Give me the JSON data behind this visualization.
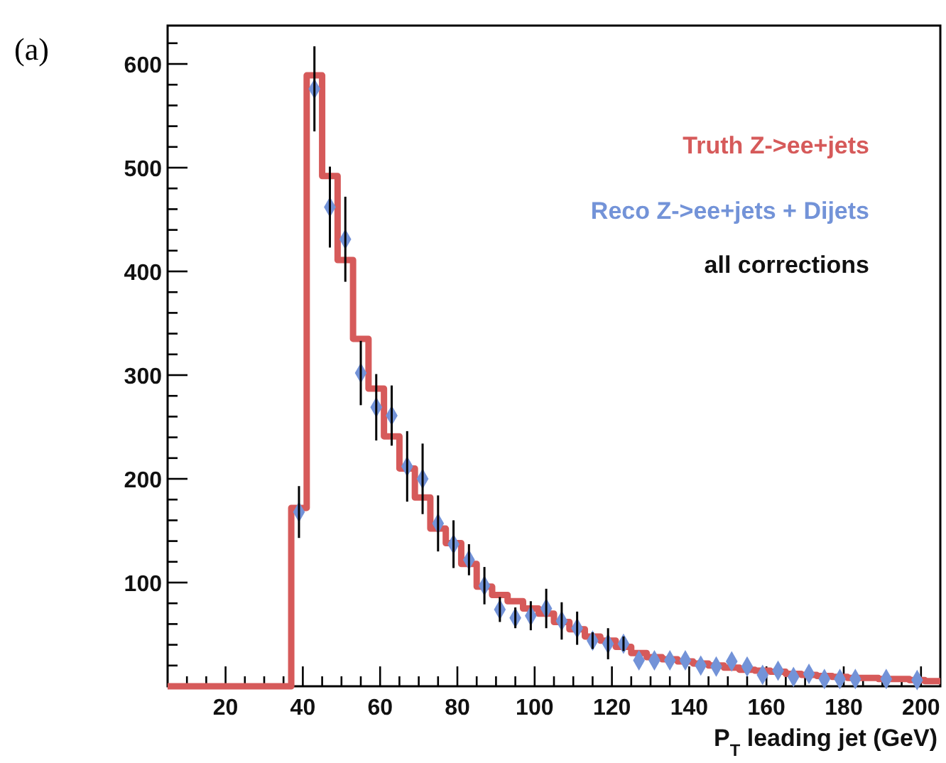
{
  "chart_data": {
    "type": "histogram",
    "title": "(a)",
    "xlabel": "P$_{T}$ leading jet (GeV)",
    "bins": [
      5,
      9,
      13,
      17,
      21,
      25,
      29,
      33,
      37,
      41,
      45,
      49,
      53,
      57,
      61,
      65,
      69,
      73,
      77,
      81,
      85,
      89,
      93,
      97,
      101,
      105,
      109,
      113,
      117,
      121,
      125,
      129,
      133,
      137,
      141,
      145,
      149,
      153,
      157,
      161,
      165,
      169,
      173,
      177,
      181,
      185,
      189,
      193,
      197,
      201,
      205
    ],
    "series": [
      {
        "name": "Truth Z->ee+jets",
        "color": "#d65a5a",
        "values": [
          0,
          0,
          0,
          0,
          0,
          0,
          0,
          0,
          172,
          589,
          492,
          411,
          335,
          287,
          241,
          210,
          182,
          152,
          138,
          118,
          96,
          88,
          82,
          75,
          70,
          62,
          55,
          48,
          44,
          38,
          32,
          28,
          26,
          24,
          22,
          20,
          18,
          16,
          15,
          14,
          12,
          11,
          10,
          9,
          8,
          8,
          7,
          7,
          6,
          5
        ]
      },
      {
        "name": "Reco Z->ee+jets + Dijets",
        "type": "scatter",
        "color": "#7393d8",
        "x": [
          39,
          43,
          47,
          51,
          55,
          59,
          63,
          67,
          71,
          75,
          79,
          83,
          87,
          91,
          95,
          99,
          103,
          107,
          111,
          115,
          119,
          123,
          127,
          131,
          135,
          139,
          143,
          147,
          151,
          155,
          159,
          163,
          167,
          171,
          175,
          179,
          183,
          191,
          199
        ],
        "values": [
          168,
          576,
          462,
          431,
          302,
          269,
          261,
          212,
          200,
          157,
          137,
          122,
          97,
          74,
          66,
          68,
          75,
          63,
          56,
          44,
          41,
          41,
          25,
          25,
          25,
          25,
          20,
          19,
          24,
          19,
          11,
          15,
          9,
          12,
          7,
          7,
          7,
          7,
          6
        ],
        "errors": [
          25,
          41,
          39,
          41,
          31,
          32,
          29,
          34,
          34,
          27,
          23,
          15,
          18,
          12,
          10,
          14,
          19,
          18,
          16,
          8,
          15,
          7,
          null,
          null,
          null,
          null,
          null,
          null,
          null,
          null,
          null,
          null,
          null,
          null,
          null,
          null,
          null,
          null,
          null
        ]
      }
    ],
    "annotations": [
      "all corrections"
    ],
    "legend": "top right",
    "marker": "diamond",
    "xlim": [
      5,
      205
    ],
    "xticks": [
      {
        "value": 10,
        "label": null
      },
      {
        "value": 15,
        "label": null
      },
      20,
      {
        "value": 25,
        "label": null
      },
      {
        "value": 30,
        "label": null
      },
      {
        "value": 35,
        "label": null
      },
      40,
      {
        "value": 45,
        "label": null
      },
      {
        "value": 50,
        "label": null
      },
      {
        "value": 55,
        "label": null
      },
      60,
      {
        "value": 65,
        "label": null
      },
      {
        "value": 70,
        "label": null
      },
      {
        "value": 75,
        "label": null
      },
      80,
      {
        "value": 85,
        "label": null
      },
      {
        "value": 90,
        "label": null
      },
      {
        "value": 95,
        "label": null
      },
      100,
      {
        "value": 105,
        "label": null
      },
      {
        "value": 110,
        "label": null
      },
      {
        "value": 115,
        "label": null
      },
      120,
      {
        "value": 125,
        "label": null
      },
      {
        "value": 130,
        "label": null
      },
      {
        "value": 135,
        "label": null
      },
      140,
      {
        "value": 145,
        "label": null
      },
      {
        "value": 150,
        "label": null
      },
      {
        "value": 155,
        "label": null
      },
      160,
      {
        "value": 165,
        "label": null
      },
      {
        "value": 170,
        "label": null
      },
      {
        "value": 175,
        "label": null
      },
      180,
      {
        "value": 185,
        "label": null
      },
      {
        "value": 190,
        "label": null
      },
      {
        "value": 195,
        "label": null
      },
      200
    ],
    "ylim": [
      0,
      637
    ],
    "yticks": [
      {
        "value": 20,
        "label": null
      },
      {
        "value": 40,
        "label": null
      },
      {
        "value": 60,
        "label": null
      },
      {
        "value": 80,
        "label": null
      },
      100,
      {
        "value": 120,
        "label": null
      },
      {
        "value": 140,
        "label": null
      },
      {
        "value": 160,
        "label": null
      },
      {
        "value": 180,
        "label": null
      },
      200,
      {
        "value": 220,
        "label": null
      },
      {
        "value": 240,
        "label": null
      },
      {
        "value": 260,
        "label": null
      },
      {
        "value": 280,
        "label": null
      },
      300,
      {
        "value": 320,
        "label": null
      },
      {
        "value": 340,
        "label": null
      },
      {
        "value": 360,
        "label": null
      },
      {
        "value": 380,
        "label": null
      },
      400,
      {
        "value": 420,
        "label": null
      },
      {
        "value": 440,
        "label": null
      },
      {
        "value": 460,
        "label": null
      },
      {
        "value": 480,
        "label": null
      },
      500,
      {
        "value": 520,
        "label": null
      },
      {
        "value": 540,
        "label": null
      },
      {
        "value": 560,
        "label": null
      },
      {
        "value": 580,
        "label": null
      },
      600,
      {
        "value": 620,
        "label": null
      }
    ]
  }
}
